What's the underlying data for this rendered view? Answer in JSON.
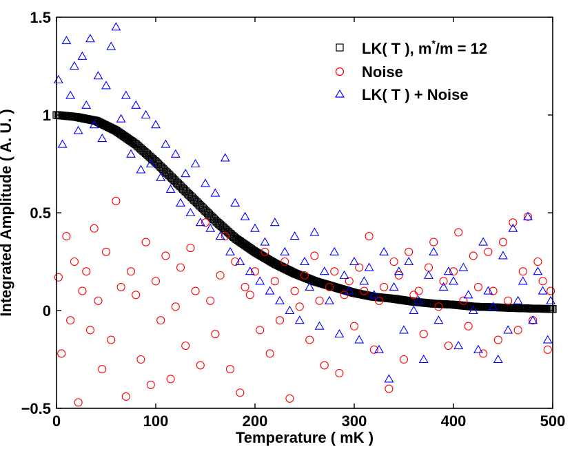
{
  "chart_data": {
    "type": "scatter",
    "title": "",
    "xlabel": "Temperature ( mK )",
    "ylabel": "Integrated Amplitude ( A. U. )",
    "xlim": [
      0,
      500
    ],
    "ylim": [
      -0.5,
      1.5
    ],
    "xticks": [
      0,
      100,
      200,
      300,
      400,
      500
    ],
    "xtick_labels": [
      "0",
      "100",
      "200",
      "300",
      "400",
      "500"
    ],
    "yticks": [
      -0.5,
      0,
      0.5,
      1,
      1.5
    ],
    "ytick_labels": [
      "−0.5",
      "0",
      "0.5",
      "1",
      "1.5"
    ],
    "grid": false,
    "legend_position": "top-right",
    "series": [
      {
        "name": "LK( T ), m*/m = 12",
        "legend_main": "LK( T ), m",
        "legend_sup": "*",
        "legend_tail": "/m = 12",
        "marker": "square",
        "color": "#000000",
        "x": [
          0,
          20,
          40,
          60,
          80,
          100,
          120,
          140,
          160,
          180,
          200,
          220,
          240,
          260,
          280,
          300,
          320,
          340,
          360,
          380,
          400,
          420,
          440,
          460,
          480,
          500
        ],
        "y": [
          1.0,
          0.99,
          0.97,
          0.92,
          0.85,
          0.76,
          0.66,
          0.56,
          0.46,
          0.37,
          0.3,
          0.24,
          0.19,
          0.15,
          0.12,
          0.09,
          0.07,
          0.06,
          0.045,
          0.035,
          0.03,
          0.02,
          0.017,
          0.013,
          0.01,
          0.008
        ]
      },
      {
        "name": "Noise",
        "marker": "circle",
        "color": "#ff0000",
        "x": [
          2,
          5,
          10,
          14,
          18,
          22,
          26,
          30,
          34,
          38,
          42,
          46,
          50,
          55,
          60,
          65,
          70,
          75,
          80,
          85,
          90,
          95,
          100,
          105,
          110,
          115,
          120,
          125,
          130,
          135,
          140,
          145,
          150,
          155,
          160,
          165,
          170,
          175,
          180,
          185,
          190,
          195,
          200,
          205,
          210,
          215,
          220,
          225,
          230,
          235,
          240,
          245,
          250,
          255,
          260,
          265,
          270,
          275,
          280,
          285,
          290,
          295,
          300,
          305,
          310,
          315,
          320,
          325,
          330,
          335,
          340,
          345,
          350,
          355,
          360,
          365,
          370,
          375,
          380,
          385,
          390,
          395,
          400,
          405,
          410,
          415,
          420,
          425,
          430,
          435,
          440,
          445,
          450,
          455,
          460,
          465,
          470,
          475,
          480,
          485,
          490,
          495,
          498
        ],
        "y": [
          0.17,
          -0.22,
          0.38,
          -0.05,
          0.25,
          -0.47,
          0.1,
          0.2,
          -0.1,
          0.42,
          0.05,
          -0.3,
          0.3,
          -0.15,
          0.56,
          0.12,
          -0.44,
          0.2,
          0.08,
          -0.25,
          0.35,
          -0.38,
          0.15,
          -0.05,
          0.28,
          -0.35,
          0.02,
          0.22,
          -0.18,
          0.32,
          0.1,
          -0.28,
          0.45,
          0.05,
          -0.12,
          0.18,
          0.38,
          -0.3,
          0.25,
          -0.42,
          0.12,
          0.08,
          0.2,
          -0.1,
          0.3,
          -0.22,
          0.15,
          -0.05,
          0.25,
          -0.45,
          0.1,
          0.02,
          0.18,
          -0.15,
          0.28,
          0.05,
          -0.28,
          0.12,
          0.2,
          -0.32,
          0.08,
          0.15,
          -0.08,
          0.22,
          0.1,
          0.38,
          -0.2,
          0.05,
          0.12,
          -0.4,
          0.25,
          0.18,
          -0.25,
          0.3,
          0.08,
          0.1,
          -0.12,
          0.22,
          0.35,
          0.02,
          0.15,
          -0.18,
          0.2,
          0.4,
          0.05,
          -0.08,
          0.28,
          0.12,
          -0.22,
          0.3,
          0.1,
          -0.15,
          0.35,
          0.05,
          0.45,
          -0.1,
          0.2,
          0.48,
          -0.05,
          0.25,
          0.15,
          -0.2,
          0.1
        ]
      },
      {
        "name": "LK( T ) + Noise",
        "marker": "triangle",
        "color": "#0000ff",
        "x": [
          2,
          6,
          10,
          14,
          18,
          22,
          26,
          30,
          34,
          38,
          42,
          46,
          50,
          55,
          60,
          65,
          70,
          75,
          80,
          85,
          90,
          95,
          100,
          105,
          110,
          115,
          120,
          125,
          130,
          135,
          140,
          145,
          150,
          155,
          160,
          165,
          170,
          175,
          180,
          185,
          190,
          195,
          200,
          205,
          210,
          215,
          220,
          225,
          230,
          235,
          240,
          245,
          250,
          255,
          260,
          265,
          270,
          275,
          280,
          285,
          290,
          295,
          300,
          305,
          310,
          315,
          320,
          325,
          330,
          335,
          340,
          345,
          350,
          355,
          360,
          365,
          370,
          375,
          380,
          385,
          390,
          395,
          400,
          405,
          410,
          415,
          420,
          425,
          430,
          435,
          440,
          445,
          450,
          455,
          460,
          465,
          470,
          475,
          480,
          485,
          490,
          495,
          498
        ],
        "y": [
          1.18,
          0.85,
          1.38,
          1.1,
          1.25,
          0.92,
          1.3,
          1.05,
          1.39,
          0.95,
          1.2,
          0.88,
          1.15,
          1.35,
          1.45,
          0.98,
          1.1,
          0.8,
          1.05,
          0.72,
          1.0,
          0.75,
          0.95,
          0.68,
          0.85,
          0.62,
          0.8,
          0.55,
          0.7,
          0.5,
          0.75,
          0.45,
          0.65,
          0.42,
          0.6,
          0.38,
          0.78,
          0.3,
          0.55,
          0.25,
          0.48,
          0.2,
          0.42,
          0.15,
          0.35,
          0.1,
          0.45,
          0.05,
          0.3,
          0.0,
          0.38,
          -0.05,
          0.25,
          0.12,
          0.4,
          -0.08,
          0.2,
          0.05,
          0.3,
          -0.12,
          0.18,
          0.1,
          0.25,
          -0.15,
          0.15,
          0.22,
          0.08,
          -0.2,
          0.3,
          -0.35,
          0.12,
          0.2,
          -0.1,
          0.25,
          0.0,
          0.05,
          -0.25,
          0.18,
          0.3,
          -0.05,
          0.12,
          0.2,
          0.15,
          -0.18,
          0.22,
          0.08,
          0.0,
          -0.2,
          0.35,
          0.1,
          0.02,
          -0.25,
          0.28,
          -0.1,
          0.42,
          0.05,
          0.15,
          0.48,
          -0.05,
          0.2,
          0.1,
          -0.15,
          0.05
        ]
      }
    ]
  }
}
